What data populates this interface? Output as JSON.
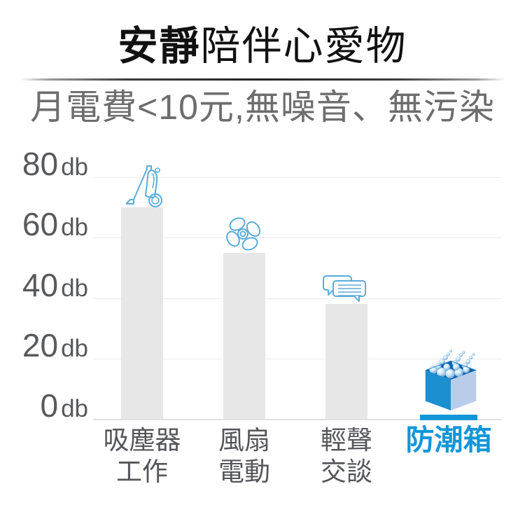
{
  "header": {
    "title_emphasis": "安靜",
    "title_rest": "陪伴心愛物",
    "subtitle": "月電費<10元,無噪音、無污染"
  },
  "chart_data": {
    "type": "bar",
    "ylabel": "db",
    "ylim": [
      0,
      80
    ],
    "grid": true,
    "yticks": [
      {
        "num": "80",
        "unit": "db"
      },
      {
        "num": "60",
        "unit": "db"
      },
      {
        "num": "40",
        "unit": "db"
      },
      {
        "num": "20",
        "unit": "db"
      },
      {
        "num": "0",
        "unit": "db"
      }
    ],
    "categories": [
      "吸塵器工作",
      "風扇電動",
      "輕聲交談",
      "防潮箱"
    ],
    "values": [
      70,
      55,
      38,
      1
    ],
    "bars": [
      {
        "id": "vacuum",
        "label_lines": [
          "吸塵器",
          "工作"
        ],
        "value": 70,
        "icon": "vacuum-icon",
        "highlight": false
      },
      {
        "id": "fan",
        "label_lines": [
          "風扇",
          "電動"
        ],
        "value": 55,
        "icon": "fan-icon",
        "highlight": false
      },
      {
        "id": "chat",
        "label_lines": [
          "輕聲",
          "交談"
        ],
        "value": 38,
        "icon": "chat-icon",
        "highlight": false
      },
      {
        "id": "drybox",
        "label_lines": [
          "防潮箱"
        ],
        "value": 1,
        "icon": "drybox-icon",
        "highlight": true
      }
    ]
  },
  "colors": {
    "accent_blue": "#1496d6",
    "icon_stroke_blue": "#5aacda",
    "bar_gray": "#e7e7e7",
    "grid_gray": "#ececec",
    "axis_text": "#58595b",
    "label_text": "#55565a",
    "title_text": "#111111",
    "subtitle_text": "#6d6d6d"
  }
}
